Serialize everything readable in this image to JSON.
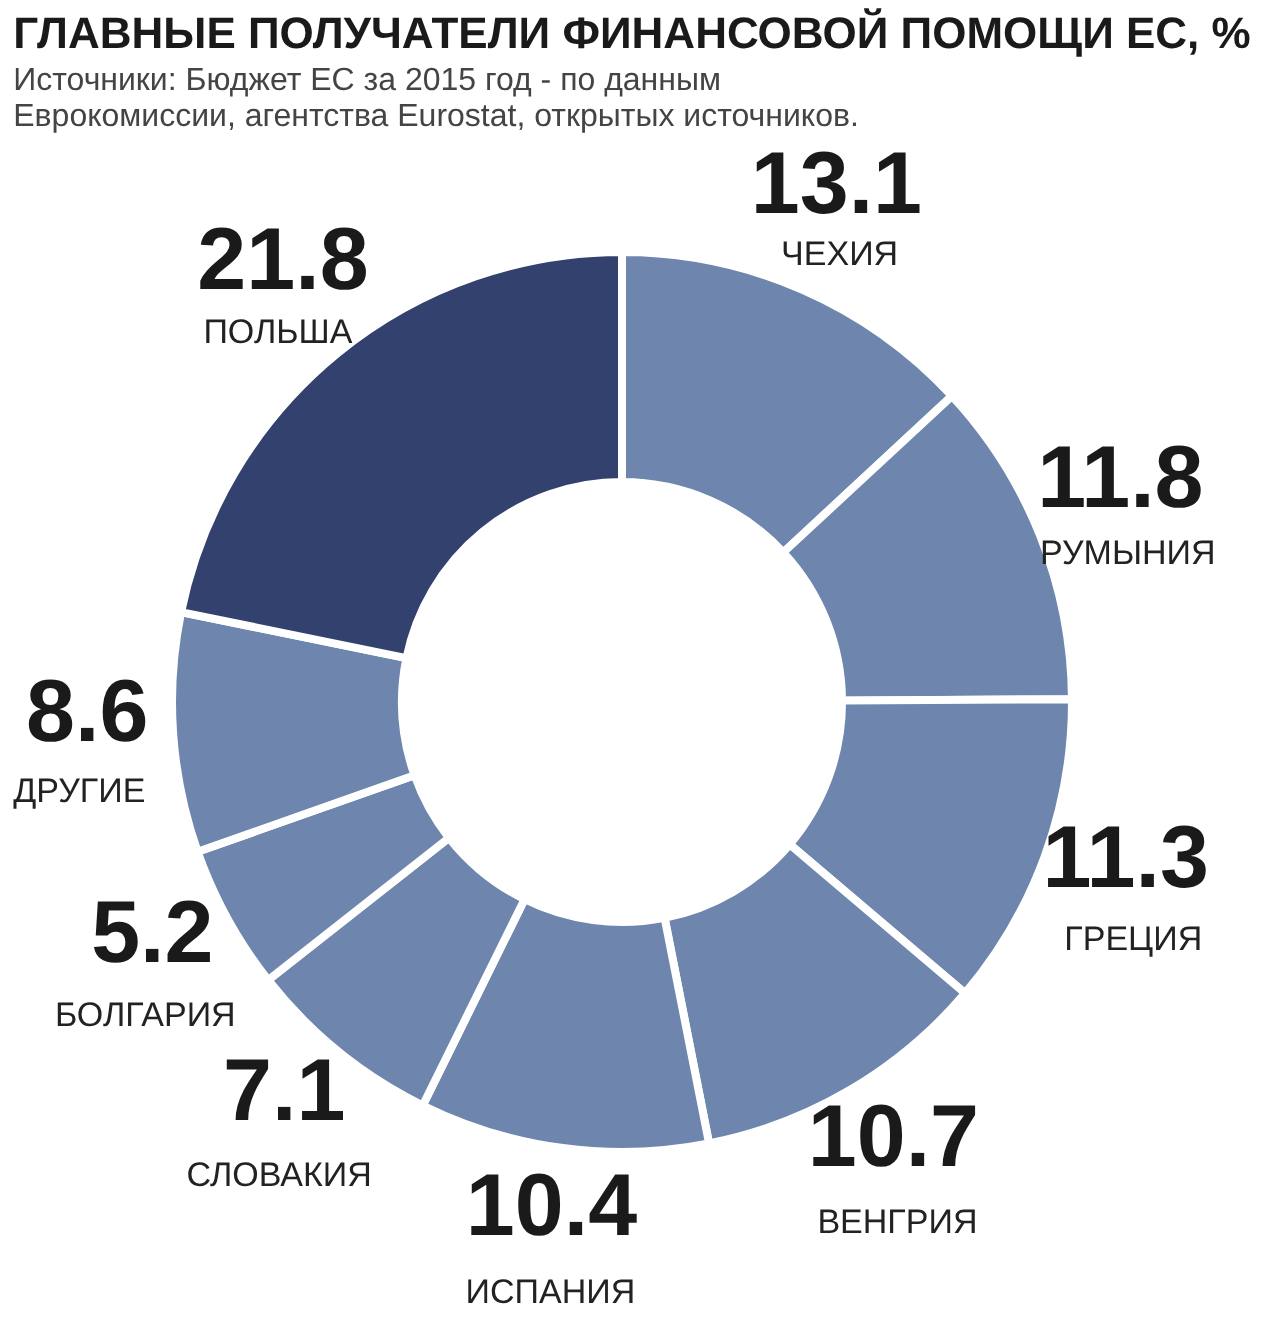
{
  "chart_data": {
    "type": "donut",
    "title": "ГЛАВНЫЕ ПОЛУЧАТЕЛИ ФИНАНСОВОЙ ПОМОЩИ ЕС, %",
    "subtitle": [
      "Источники: Бюджет ЕС за 2015 год - по данным",
      "Еврокомиссии, агентства Eurostat, открытых источников."
    ],
    "categories": [
      "ЧЕХИЯ",
      "РУМЫНИЯ",
      "ГРЕЦИЯ",
      "ВЕНГРИЯ",
      "ИСПАНИЯ",
      "СЛОВАКИЯ",
      "БОЛГАРИЯ",
      "ДРУГИЕ",
      "ПОЛЬША"
    ],
    "values": [
      13.1,
      11.8,
      11.3,
      10.7,
      10.4,
      7.1,
      5.2,
      8.6,
      21.8
    ],
    "colors": [
      "#6e86ad",
      "#6e86ad",
      "#6e86ad",
      "#6e86ad",
      "#6e86ad",
      "#6e86ad",
      "#6e86ad",
      "#6e86ad",
      "#33416e"
    ],
    "data_labels": true,
    "legend": false
  }
}
